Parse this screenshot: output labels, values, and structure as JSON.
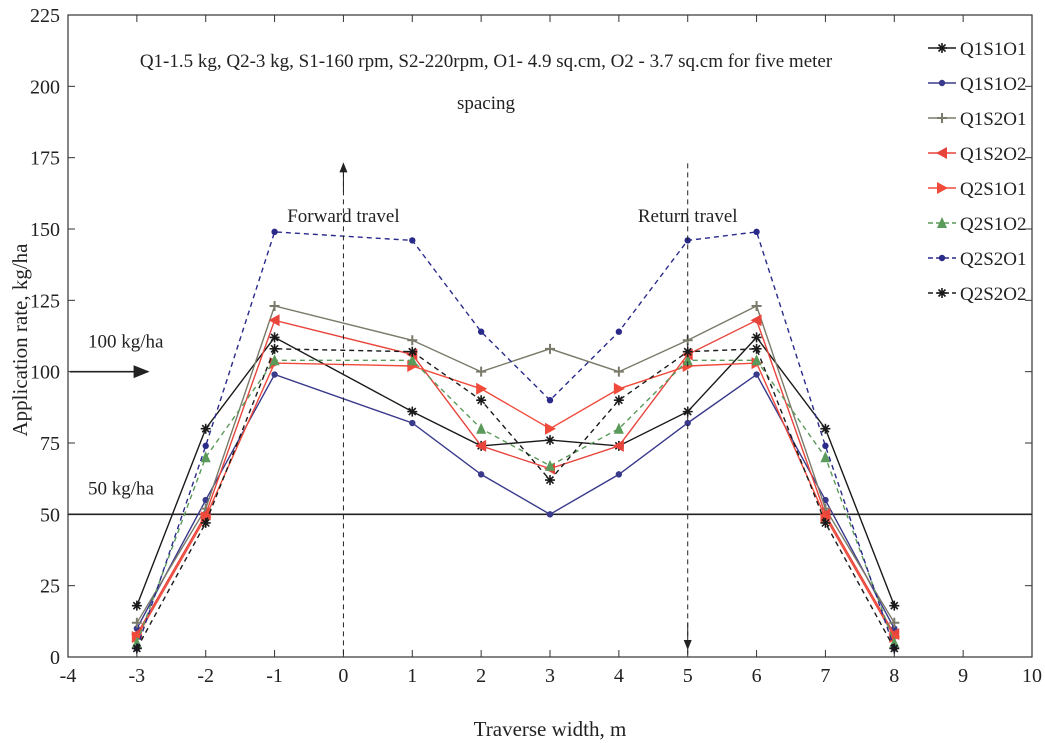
{
  "chart_data": {
    "type": "line",
    "title": "Q1-1.5 kg, Q2-3 kg, S1-160 rpm, S2-220rpm, O1- 4.9 sq.cm, O2 - 3.7 sq.cm for five meter spacing",
    "title_lines": [
      "Q1-1.5 kg, Q2-3 kg, S1-160 rpm, S2-220rpm, O1- 4.9 sq.cm, O2 - 3.7 sq.cm for five meter",
      "spacing"
    ],
    "xlabel": "Traverse width, m",
    "ylabel": "Application rate, kg/ha",
    "xlim": [
      -4,
      10
    ],
    "ylim": [
      0,
      225
    ],
    "xticks": [
      -4,
      -3,
      -2,
      -1,
      0,
      1,
      2,
      3,
      4,
      5,
      6,
      7,
      8,
      9,
      10
    ],
    "yticks": [
      0,
      25,
      50,
      75,
      100,
      125,
      150,
      175,
      200,
      225
    ],
    "grid": false,
    "legend_position": "top-right",
    "x": [
      -3,
      -2,
      -1,
      1,
      2,
      3,
      4,
      5,
      6,
      7,
      8
    ],
    "series": [
      {
        "name": "Q1S1O1",
        "color": "#1a1a1a",
        "dash": false,
        "marker": "star",
        "values": [
          18,
          80,
          112,
          86,
          74,
          76,
          74,
          86,
          112,
          80,
          18
        ]
      },
      {
        "name": "Q1S1O2",
        "color": "#3a3a8c",
        "dash": false,
        "marker": "dot",
        "values": [
          10,
          55,
          99,
          82,
          64,
          50,
          64,
          82,
          99,
          55,
          10
        ]
      },
      {
        "name": "Q1S2O1",
        "color": "#7a7a6a",
        "dash": false,
        "marker": "plus",
        "values": [
          12,
          52,
          123,
          111,
          100,
          108,
          100,
          111,
          123,
          52,
          12
        ]
      },
      {
        "name": "Q1S2O2",
        "color": "#e8443c",
        "dash": false,
        "marker": "tri-left",
        "values": [
          8,
          50,
          118,
          106,
          74,
          66,
          74,
          106,
          118,
          50,
          8
        ]
      },
      {
        "name": "Q2S1O1",
        "color": "#f04a3a",
        "dash": false,
        "marker": "tri-right",
        "values": [
          7,
          49,
          103,
          102,
          94,
          80,
          94,
          102,
          103,
          49,
          7
        ]
      },
      {
        "name": "Q2S1O2",
        "color": "#5a9a5a",
        "dash": true,
        "marker": "tri-up",
        "values": [
          5,
          70,
          104,
          104,
          80,
          67,
          80,
          104,
          104,
          70,
          5
        ]
      },
      {
        "name": "Q2S2O1",
        "color": "#2a2a8a",
        "dash": true,
        "marker": "dot",
        "values": [
          3,
          74,
          149,
          146,
          114,
          90,
          114,
          146,
          149,
          74,
          3
        ]
      },
      {
        "name": "Q2S2O2",
        "color": "#1a1a1a",
        "dash": true,
        "marker": "star",
        "values": [
          3,
          47,
          108,
          107,
          90,
          62,
          90,
          107,
          108,
          47,
          3
        ]
      }
    ],
    "reference_lines": [
      {
        "y": 50,
        "label": "50 kg/ha"
      }
    ],
    "annotations": [
      {
        "text": "100 kg/ha",
        "x": -4,
        "y": 100,
        "arrow": "right"
      },
      {
        "text": "Forward travel",
        "x": 0,
        "y": 165,
        "vline": true,
        "arrow": "up"
      },
      {
        "text": "Return travel",
        "x": 5,
        "y": 165,
        "vline": true,
        "arrow": "down"
      }
    ]
  }
}
